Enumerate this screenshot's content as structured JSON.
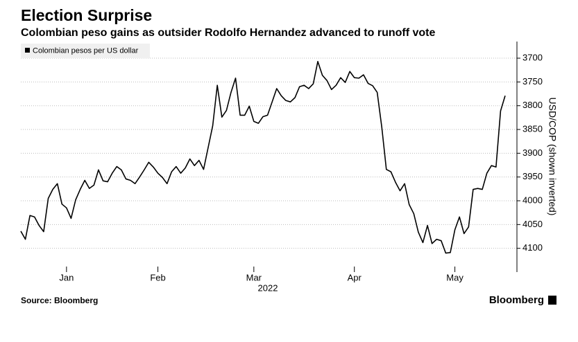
{
  "chart_data": {
    "type": "line",
    "title": "Election Surprise",
    "subtitle": "Colombian peso gains as outsider Rodolfo Hernandez advanced to runoff vote",
    "y_label": "USD/COP (shown inverted)",
    "x_label": "2022",
    "source": "Source: Bloomberg",
    "brand": "Bloomberg",
    "y_inverted": true,
    "grid": true,
    "legend": "top-left",
    "series": [
      {
        "name": "Colombian pesos per US dollar",
        "color": "#000000",
        "values": [
          4064,
          4081,
          4031,
          4034,
          4052,
          4065,
          3995,
          3976,
          3964,
          4007,
          4015,
          4037,
          3998,
          3976,
          3957,
          3974,
          3967,
          3935,
          3958,
          3960,
          3942,
          3928,
          3935,
          3954,
          3957,
          3964,
          3950,
          3935,
          3919,
          3929,
          3942,
          3951,
          3964,
          3939,
          3928,
          3942,
          3931,
          3912,
          3926,
          3915,
          3934,
          3888,
          3842,
          3757,
          3824,
          3810,
          3772,
          3742,
          3820,
          3820,
          3801,
          3833,
          3837,
          3823,
          3820,
          3792,
          3764,
          3779,
          3789,
          3792,
          3783,
          3760,
          3757,
          3764,
          3754,
          3707,
          3736,
          3747,
          3766,
          3757,
          3741,
          3751,
          3728,
          3741,
          3742,
          3735,
          3753,
          3758,
          3772,
          3845,
          3934,
          3939,
          3961,
          3979,
          3964,
          4008,
          4027,
          4066,
          4088,
          4052,
          4090,
          4081,
          4084,
          4110,
          4109,
          4061,
          4034,
          4069,
          4055,
          3976,
          3974,
          3976,
          3942,
          3926,
          3929,
          3811,
          3779
        ]
      }
    ],
    "xlim": [
      0,
      106
    ],
    "xticks": [
      {
        "value": 10,
        "label": "Jan"
      },
      {
        "value": 30,
        "label": "Feb"
      },
      {
        "value": 51,
        "label": "Mar"
      },
      {
        "value": 73,
        "label": "Apr"
      },
      {
        "value": 95,
        "label": "May"
      }
    ],
    "ylim": [
      3665,
      4150
    ],
    "yticks": [
      3700,
      3750,
      3800,
      3850,
      3900,
      3950,
      4000,
      4050,
      4100
    ]
  }
}
